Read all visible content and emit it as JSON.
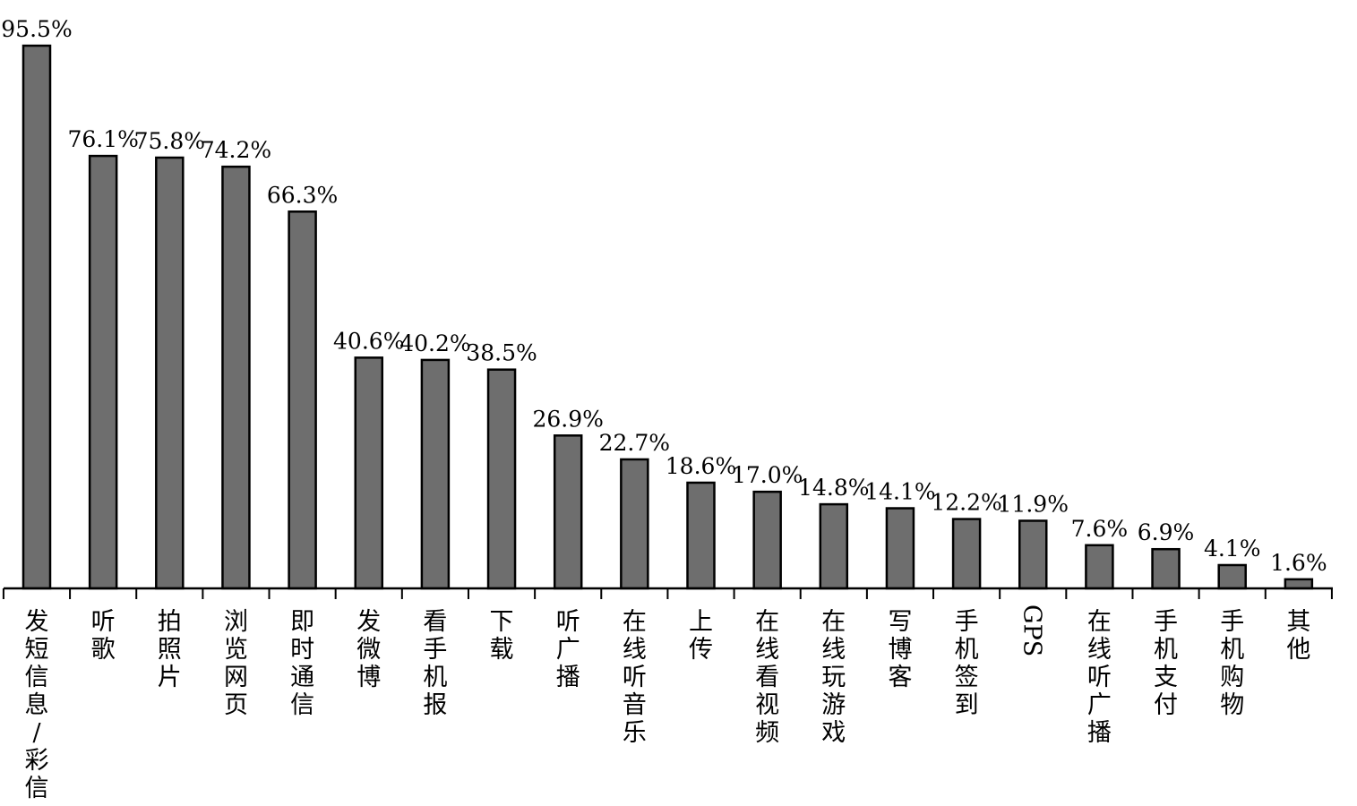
{
  "chart_data": {
    "type": "bar",
    "categories": [
      "发短信息/彩信",
      "听歌",
      "拍照片",
      "浏览网页",
      "即时通信",
      "发微博",
      "看手机报",
      "下载",
      "听广播",
      "在线听音乐",
      "上传",
      "在线看视频",
      "在线玩游戏",
      "写博客",
      "手机签到",
      "GPS",
      "在线听广播",
      "手机支付",
      "手机购物",
      "其他"
    ],
    "values": [
      95.5,
      76.1,
      75.8,
      74.2,
      66.3,
      40.6,
      40.2,
      38.5,
      26.9,
      22.7,
      18.6,
      17.0,
      14.8,
      14.1,
      12.2,
      11.9,
      7.6,
      6.9,
      4.1,
      1.6
    ],
    "value_labels": [
      "95.5%",
      "76.1%",
      "75.8%",
      "74.2%",
      "66.3%",
      "40.6%",
      "40.2%",
      "38.5%",
      "26.9%",
      "22.7%",
      "18.6%",
      "17.0%",
      "14.8%",
      "14.1%",
      "12.2%",
      "11.9%",
      "7.6%",
      "6.9%",
      "4.1%",
      "1.6%"
    ],
    "unit": "%",
    "ylim": [
      0,
      100
    ],
    "grid": false,
    "legend": "none",
    "bar_color": "#6e6e6e"
  }
}
